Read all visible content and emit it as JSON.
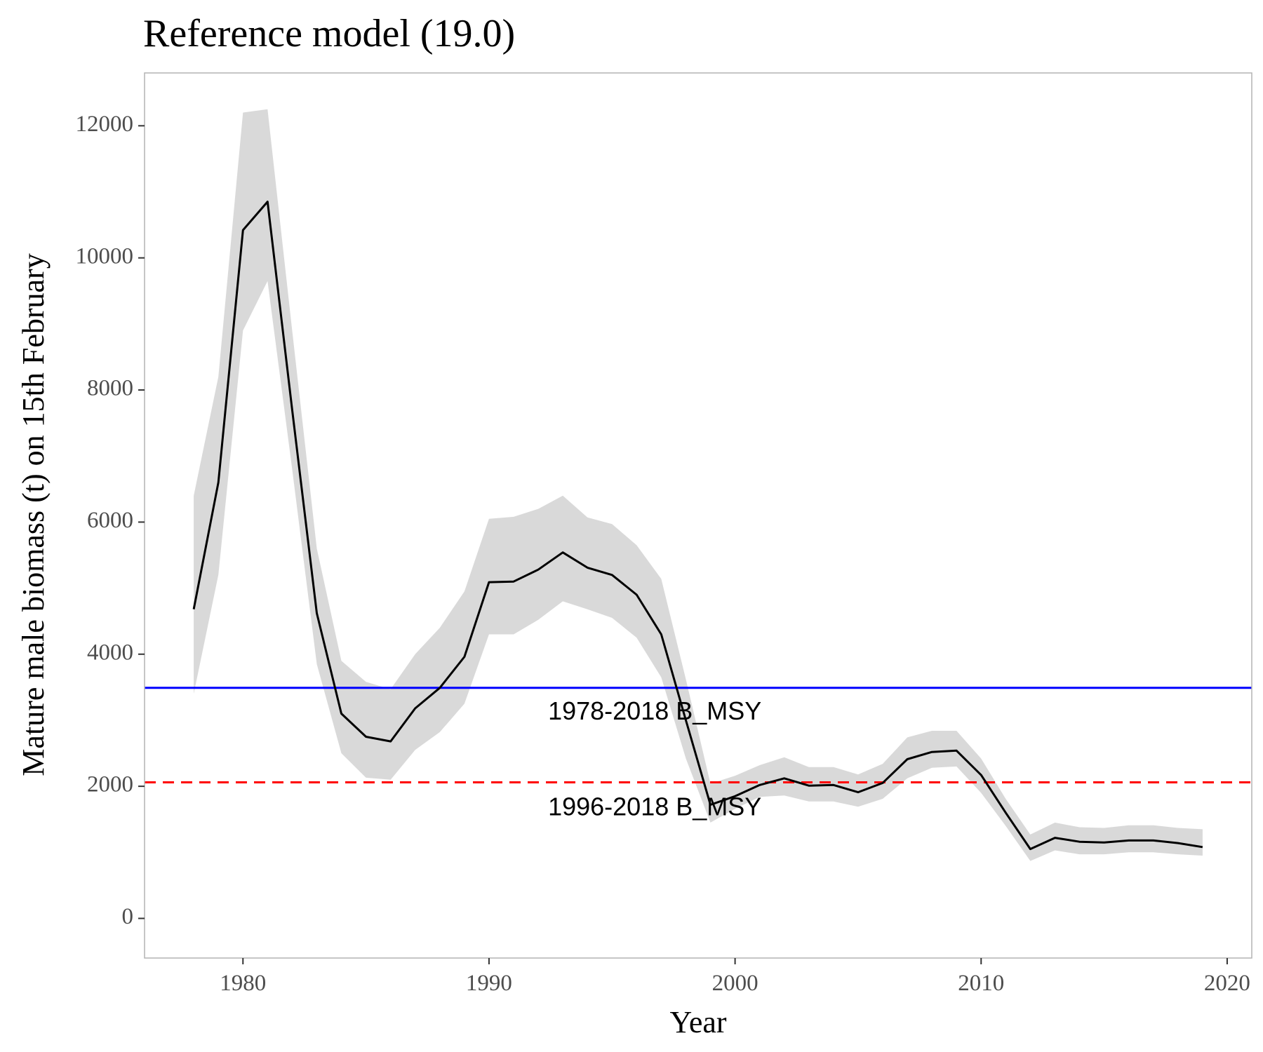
{
  "chart_data": {
    "type": "line",
    "title": "Reference model (19.0)",
    "xlabel": "Year",
    "ylabel": "Mature male biomass (t) on 15th February",
    "xlim": [
      1976,
      2021
    ],
    "ylim": [
      -600,
      12800
    ],
    "x_ticks": [
      1980,
      1990,
      2000,
      2010,
      2020
    ],
    "y_ticks": [
      0,
      2000,
      4000,
      6000,
      8000,
      10000,
      12000
    ],
    "grid": false,
    "legend": "none",
    "series": [
      {
        "kind": "line",
        "color": "#000000",
        "x": [
          1978,
          1979,
          1980,
          1981,
          1982,
          1983,
          1984,
          1985,
          1986,
          1987,
          1988,
          1989,
          1990,
          1991,
          1992,
          1993,
          1994,
          1995,
          1996,
          1997,
          1998,
          1999,
          2000,
          2001,
          2002,
          2003,
          2004,
          2005,
          2006,
          2007,
          2008,
          2009,
          2010,
          2011,
          2012,
          2013,
          2014,
          2015,
          2016,
          2017,
          2018,
          2019
        ],
        "y": [
          4680,
          6600,
          10420,
          10850,
          7700,
          4620,
          3100,
          2750,
          2680,
          3180,
          3490,
          3960,
          5090,
          5100,
          5280,
          5540,
          5310,
          5200,
          4900,
          4300,
          3000,
          1720,
          1850,
          2020,
          2120,
          2010,
          2020,
          1910,
          2050,
          2410,
          2520,
          2540,
          2170,
          1600,
          1050,
          1220,
          1160,
          1150,
          1180,
          1180,
          1140,
          1080
        ]
      },
      {
        "kind": "ribbon",
        "color": "#d9d9d9",
        "x": [
          1978,
          1979,
          1980,
          1981,
          1982,
          1983,
          1984,
          1985,
          1986,
          1987,
          1988,
          1989,
          1990,
          1991,
          1992,
          1993,
          1994,
          1995,
          1996,
          1997,
          1998,
          1999,
          2000,
          2001,
          2002,
          2003,
          2004,
          2005,
          2006,
          2007,
          2008,
          2009,
          2010,
          2011,
          2012,
          2013,
          2014,
          2015,
          2016,
          2017,
          2018,
          2019
        ],
        "lower": [
          3400,
          5200,
          8900,
          9650,
          6800,
          3850,
          2500,
          2130,
          2100,
          2550,
          2820,
          3250,
          4300,
          4300,
          4520,
          4800,
          4680,
          4550,
          4250,
          3650,
          2420,
          1450,
          1660,
          1840,
          1860,
          1770,
          1770,
          1690,
          1810,
          2120,
          2280,
          2300,
          1900,
          1400,
          870,
          1030,
          970,
          970,
          1000,
          1000,
          970,
          950
        ],
        "upper": [
          6400,
          8200,
          12200,
          12250,
          8900,
          5600,
          3900,
          3580,
          3470,
          4000,
          4400,
          4950,
          6050,
          6080,
          6200,
          6400,
          6070,
          5970,
          5650,
          5140,
          3620,
          2040,
          2160,
          2320,
          2440,
          2290,
          2290,
          2180,
          2340,
          2740,
          2840,
          2840,
          2420,
          1810,
          1270,
          1450,
          1380,
          1370,
          1410,
          1410,
          1370,
          1350
        ]
      },
      {
        "kind": "hline",
        "name": "1978-2018 B_MSY",
        "y": 3490,
        "color": "#0000ff",
        "linestyle": "solid"
      },
      {
        "kind": "hline",
        "name": "1996-2018 B_MSY",
        "y": 2060,
        "color": "#ff0000",
        "linestyle": "dashed"
      }
    ],
    "annotations": [
      {
        "text": "1978-2018 B_MSY",
        "x": 1992.4,
        "y": 3110
      },
      {
        "text": "1996-2018 B_MSY",
        "x": 1992.4,
        "y": 1660
      }
    ]
  }
}
